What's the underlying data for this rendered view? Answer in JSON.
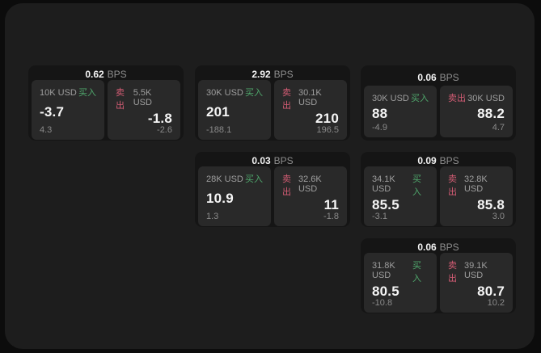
{
  "colors": {
    "background_outer": "#0c0c0c",
    "window_background": "#1d1d1d",
    "card_background": "#151515",
    "panel_background": "#292929",
    "buy_green": "#4fa76c",
    "sell_red": "#d35c74",
    "value_white": "#f5f5f5",
    "label_gray": "#9e9e9e"
  },
  "cards": [
    {
      "bps_value": "0.62",
      "bps_unit": "BPS",
      "buy": {
        "amount": "10K USD",
        "label": "买入",
        "price": "-3.7",
        "secondary": "4.3"
      },
      "sell": {
        "label": "卖出",
        "amount": "5.5K USD",
        "price": "-1.8",
        "secondary": "-2.6"
      }
    },
    {
      "bps_value": "2.92",
      "bps_unit": "BPS",
      "buy": {
        "amount": "30K USD",
        "label": "买入",
        "price": "201",
        "secondary": "-188.1"
      },
      "sell": {
        "label": "卖出",
        "amount": "30.1K USD",
        "price": "210",
        "secondary": "196.5"
      }
    },
    {
      "bps_value": "0.06",
      "bps_unit": "BPS",
      "buy": {
        "amount": "30K USD",
        "label": "买入",
        "price": "88",
        "secondary": "-4.9"
      },
      "sell": {
        "label": "卖出",
        "amount": "30K USD",
        "price": "88.2",
        "secondary": "4.7"
      }
    },
    {
      "bps_value": "0.03",
      "bps_unit": "BPS",
      "buy": {
        "amount": "28K USD",
        "label": "买入",
        "price": "10.9",
        "secondary": "1.3"
      },
      "sell": {
        "label": "卖出",
        "amount": "32.6K USD",
        "price": "11",
        "secondary": "-1.8"
      }
    },
    {
      "bps_value": "0.09",
      "bps_unit": "BPS",
      "buy": {
        "amount": "34.1K USD",
        "label": "买入",
        "price": "85.5",
        "secondary": "-3.1"
      },
      "sell": {
        "label": "卖出",
        "amount": "32.8K USD",
        "price": "85.8",
        "secondary": "3.0"
      }
    },
    {
      "bps_value": "0.06",
      "bps_unit": "BPS",
      "buy": {
        "amount": "31.8K USD",
        "label": "买入",
        "price": "80.5",
        "secondary": "-10.8"
      },
      "sell": {
        "label": "卖出",
        "amount": "39.1K USD",
        "price": "80.7",
        "secondary": "10.2"
      }
    }
  ]
}
